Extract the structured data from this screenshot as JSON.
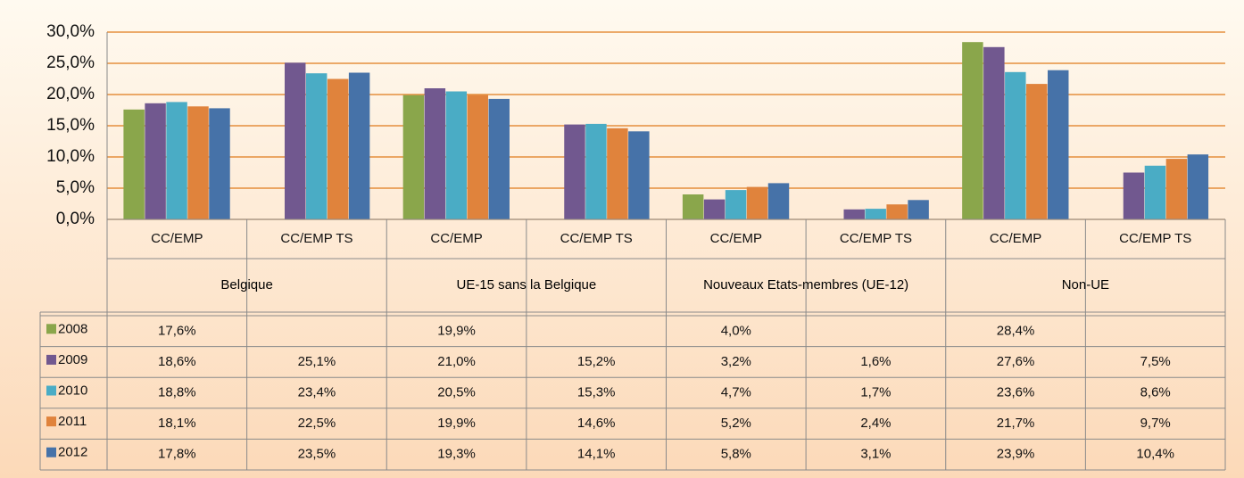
{
  "chart_data": {
    "type": "bar",
    "categories": [
      "CC/EMP",
      "CC/EMP TS",
      "CC/EMP",
      "CC/EMP TS",
      "CC/EMP",
      "CC/EMP TS",
      "CC/EMP",
      "CC/EMP TS"
    ],
    "groups": [
      "Belgique",
      "UE-15 sans la Belgique",
      "Nouveaux Etats-membres  (UE-12)",
      "Non-UE"
    ],
    "series": [
      {
        "name": "2008",
        "color": "#8aa64b",
        "values": [
          17.6,
          null,
          19.9,
          null,
          4.0,
          null,
          28.4,
          null
        ],
        "value_labels": [
          "17,6%",
          null,
          "19,9%",
          null,
          "4,0%",
          null,
          "28,4%",
          null
        ]
      },
      {
        "name": "2009",
        "color": "#71588f",
        "values": [
          18.6,
          25.1,
          21.0,
          15.2,
          3.2,
          1.6,
          27.6,
          7.5
        ],
        "value_labels": [
          "18,6%",
          "25,1%",
          "21,0%",
          "15,2%",
          "3,2%",
          "1,6%",
          "27,6%",
          "7,5%"
        ]
      },
      {
        "name": "2010",
        "color": "#4aacc5",
        "values": [
          18.8,
          23.4,
          20.5,
          15.3,
          4.7,
          1.7,
          23.6,
          8.6
        ],
        "value_labels": [
          "18,8%",
          "23,4%",
          "20,5%",
          "15,3%",
          "4,7%",
          "1,7%",
          "23,6%",
          "8,6%"
        ]
      },
      {
        "name": "2011",
        "color": "#e0833c",
        "values": [
          18.1,
          22.5,
          19.9,
          14.6,
          5.2,
          2.4,
          21.7,
          9.7
        ],
        "value_labels": [
          "18,1%",
          "22,5%",
          "19,9%",
          "14,6%",
          "5,2%",
          "2,4%",
          "21,7%",
          "9,7%"
        ]
      },
      {
        "name": "2012",
        "color": "#4672a8",
        "values": [
          17.8,
          23.5,
          19.3,
          14.1,
          5.8,
          3.1,
          23.9,
          10.4
        ],
        "value_labels": [
          "17,8%",
          "23,5%",
          "19,3%",
          "14,1%",
          "5,8%",
          "3,1%",
          "23,9%",
          "10,4%"
        ]
      }
    ],
    "ylim": [
      0,
      30
    ],
    "yticks": [
      {
        "value": 0,
        "label": "0,0%"
      },
      {
        "value": 5,
        "label": "5,0%"
      },
      {
        "value": 10,
        "label": "10,0%"
      },
      {
        "value": 15,
        "label": "15,0%"
      },
      {
        "value": 20,
        "label": "20,0%"
      },
      {
        "value": 25,
        "label": "25,0%"
      },
      {
        "value": 30,
        "label": "30,0%"
      }
    ],
    "grid": true,
    "grid_color": "#e07b1c"
  }
}
